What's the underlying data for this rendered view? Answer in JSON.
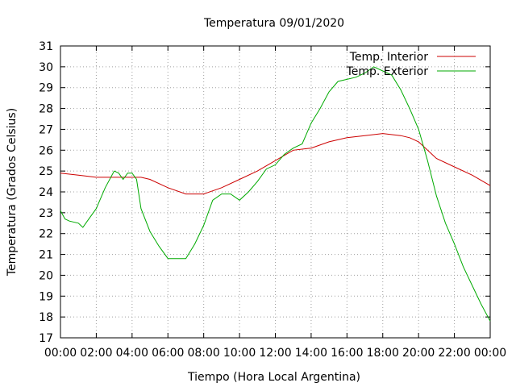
{
  "chart_data": {
    "type": "line",
    "title": "Temperatura 09/01/2020",
    "xlabel": "Tiempo (Hora Local Argentina)",
    "ylabel": "Temperatura (Grados Celsius)",
    "ylim": [
      17,
      31
    ],
    "yticks": [
      "17",
      "18",
      "19",
      "20",
      "21",
      "22",
      "23",
      "24",
      "25",
      "26",
      "27",
      "28",
      "29",
      "30",
      "31"
    ],
    "xlim": [
      "00:00",
      "24:00"
    ],
    "xticks": [
      "00:00",
      "02:00",
      "04:00",
      "06:00",
      "08:00",
      "10:00",
      "12:00",
      "14:00",
      "16:00",
      "18:00",
      "20:00",
      "22:00",
      "00:00"
    ],
    "grid": true,
    "legend_position": "top-right",
    "series": [
      {
        "name": "Temp. Interior",
        "color": "#cc0000",
        "x": [
          "00:00",
          "01:00",
          "02:00",
          "03:00",
          "04:00",
          "04:30",
          "05:00",
          "06:00",
          "07:00",
          "08:00",
          "09:00",
          "10:00",
          "11:00",
          "12:00",
          "13:00",
          "14:00",
          "15:00",
          "16:00",
          "17:00",
          "18:00",
          "19:00",
          "19:30",
          "20:00",
          "20:30",
          "21:00",
          "22:00",
          "23:00",
          "24:00"
        ],
        "values": [
          24.9,
          24.8,
          24.7,
          24.7,
          24.7,
          24.7,
          24.6,
          24.2,
          23.9,
          23.9,
          24.2,
          24.6,
          25.0,
          25.5,
          26.0,
          26.1,
          26.4,
          26.6,
          26.7,
          26.8,
          26.7,
          26.6,
          26.4,
          26.0,
          25.6,
          25.2,
          24.8,
          24.3
        ]
      },
      {
        "name": "Temp. Exterior",
        "color": "#00aa00",
        "x": [
          "00:00",
          "00:15",
          "00:30",
          "01:00",
          "01:15",
          "01:30",
          "02:00",
          "02:30",
          "03:00",
          "03:15",
          "03:30",
          "03:45",
          "04:00",
          "04:15",
          "04:30",
          "05:00",
          "05:30",
          "06:00",
          "06:30",
          "07:00",
          "07:30",
          "08:00",
          "08:30",
          "09:00",
          "09:30",
          "10:00",
          "10:30",
          "11:00",
          "11:30",
          "12:00",
          "12:30",
          "13:00",
          "13:30",
          "14:00",
          "14:30",
          "15:00",
          "15:30",
          "16:00",
          "16:30",
          "17:00",
          "17:30",
          "18:00",
          "18:30",
          "19:00",
          "19:30",
          "20:00",
          "20:30",
          "21:00",
          "21:30",
          "22:00",
          "22:30",
          "23:00",
          "23:30",
          "24:00"
        ],
        "values": [
          23.1,
          22.7,
          22.6,
          22.5,
          22.3,
          22.6,
          23.2,
          24.2,
          25.0,
          24.9,
          24.6,
          24.9,
          24.9,
          24.6,
          23.2,
          22.1,
          21.4,
          20.8,
          20.8,
          20.8,
          21.5,
          22.4,
          23.6,
          23.9,
          23.9,
          23.6,
          24.0,
          24.5,
          25.1,
          25.3,
          25.8,
          26.1,
          26.3,
          27.3,
          28.0,
          28.8,
          29.3,
          29.4,
          29.5,
          29.7,
          30.0,
          29.8,
          29.6,
          28.9,
          28.0,
          27.0,
          25.5,
          23.8,
          22.5,
          21.5,
          20.4,
          19.5,
          18.6,
          17.8
        ]
      }
    ]
  }
}
